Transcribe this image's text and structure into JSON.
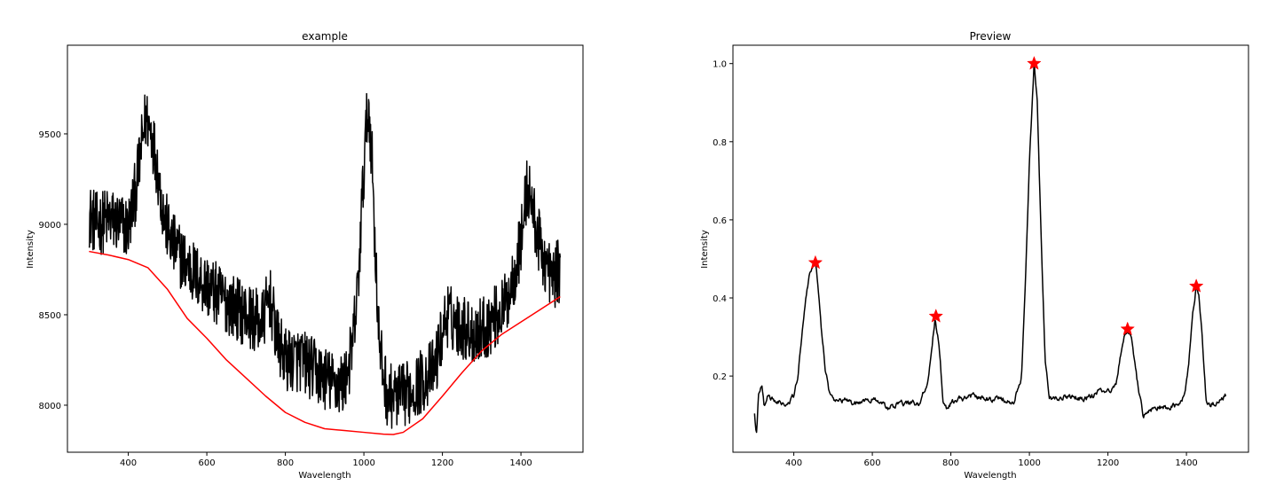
{
  "chart_data": [
    {
      "id": "left",
      "type": "line",
      "title": "example",
      "xlabel": "Wavelength",
      "ylabel": "Intensity",
      "xlim": [
        245,
        1558
      ],
      "ylim": [
        7740,
        9990
      ],
      "xticks": [
        400,
        600,
        800,
        1000,
        1200,
        1400
      ],
      "yticks": [
        8000,
        8500,
        9000,
        9500
      ],
      "grid": false,
      "series": [
        {
          "color": "#000000",
          "noise_amplitude": 180,
          "x": [
            300,
            320,
            350,
            380,
            400,
            420,
            435,
            445,
            460,
            475,
            490,
            510,
            540,
            580,
            620,
            660,
            700,
            740,
            760,
            780,
            800,
            840,
            880,
            920,
            950,
            970,
            985,
            995,
            1005,
            1012,
            1020,
            1030,
            1040,
            1060,
            1080,
            1100,
            1140,
            1180,
            1210,
            1240,
            1280,
            1320,
            1360,
            1380,
            1400,
            1415,
            1425,
            1440,
            1460,
            1480,
            1500
          ],
          "y": [
            9050,
            9000,
            9030,
            9000,
            8980,
            9200,
            9450,
            9600,
            9500,
            9300,
            9050,
            8900,
            8800,
            8700,
            8620,
            8560,
            8500,
            8450,
            8600,
            8350,
            8250,
            8250,
            8180,
            8120,
            8120,
            8300,
            8650,
            9100,
            9500,
            9650,
            9400,
            8800,
            8300,
            8050,
            8050,
            8050,
            8120,
            8200,
            8500,
            8450,
            8400,
            8450,
            8550,
            8700,
            8900,
            9200,
            9150,
            8950,
            8800,
            8700,
            8750
          ]
        },
        {
          "color": "#ff0000",
          "x": [
            300,
            350,
            400,
            450,
            500,
            550,
            600,
            650,
            700,
            750,
            800,
            850,
            900,
            950,
            1000,
            1050,
            1075,
            1100,
            1150,
            1200,
            1250,
            1300,
            1350,
            1400,
            1450,
            1500
          ],
          "y": [
            8850,
            8830,
            8805,
            8760,
            8640,
            8480,
            8370,
            8250,
            8150,
            8050,
            7960,
            7905,
            7870,
            7860,
            7850,
            7840,
            7838,
            7850,
            7925,
            8050,
            8180,
            8300,
            8390,
            8460,
            8530,
            8600
          ]
        }
      ]
    },
    {
      "id": "right",
      "type": "line",
      "title": "Preview",
      "xlabel": "Wavelength",
      "ylabel": "Intensity",
      "xlim": [
        245,
        1558
      ],
      "ylim": [
        0.005,
        1.047
      ],
      "xticks": [
        400,
        600,
        800,
        1000,
        1200,
        1400
      ],
      "yticks": [
        0.2,
        0.4,
        0.6,
        0.8,
        1.0
      ],
      "grid": false,
      "series": [
        {
          "color": "#000000",
          "noise_amplitude": 0.014,
          "x": [
            300,
            305,
            310,
            318,
            325,
            335,
            350,
            370,
            390,
            400,
            410,
            420,
            430,
            440,
            450,
            455,
            460,
            470,
            480,
            490,
            500,
            520,
            560,
            600,
            640,
            680,
            720,
            740,
            750,
            760,
            770,
            780,
            790,
            800,
            820,
            860,
            900,
            940,
            960,
            980,
            990,
            1000,
            1012,
            1020,
            1030,
            1040,
            1050,
            1060,
            1100,
            1140,
            1180,
            1200,
            1220,
            1230,
            1240,
            1250,
            1260,
            1270,
            1280,
            1290,
            1300,
            1330,
            1360,
            1380,
            1395,
            1405,
            1415,
            1425,
            1432,
            1440,
            1450,
            1460,
            1480,
            1500
          ],
          "y": [
            0.1,
            0.05,
            0.15,
            0.18,
            0.12,
            0.15,
            0.14,
            0.13,
            0.13,
            0.15,
            0.2,
            0.3,
            0.4,
            0.46,
            0.49,
            0.49,
            0.45,
            0.32,
            0.22,
            0.16,
            0.14,
            0.14,
            0.13,
            0.14,
            0.12,
            0.13,
            0.13,
            0.18,
            0.26,
            0.35,
            0.28,
            0.14,
            0.12,
            0.13,
            0.14,
            0.15,
            0.14,
            0.14,
            0.13,
            0.2,
            0.45,
            0.75,
            1.0,
            0.9,
            0.55,
            0.25,
            0.15,
            0.14,
            0.15,
            0.14,
            0.16,
            0.16,
            0.18,
            0.24,
            0.3,
            0.32,
            0.3,
            0.22,
            0.15,
            0.1,
            0.11,
            0.12,
            0.12,
            0.13,
            0.15,
            0.22,
            0.35,
            0.43,
            0.4,
            0.3,
            0.14,
            0.13,
            0.13,
            0.15
          ]
        }
      ],
      "markers": {
        "symbol": "star",
        "color": "#ff0000",
        "x": [
          455,
          762,
          1012,
          1250,
          1425
        ],
        "y": [
          0.49,
          0.353,
          1.0,
          0.32,
          0.43
        ]
      }
    }
  ]
}
